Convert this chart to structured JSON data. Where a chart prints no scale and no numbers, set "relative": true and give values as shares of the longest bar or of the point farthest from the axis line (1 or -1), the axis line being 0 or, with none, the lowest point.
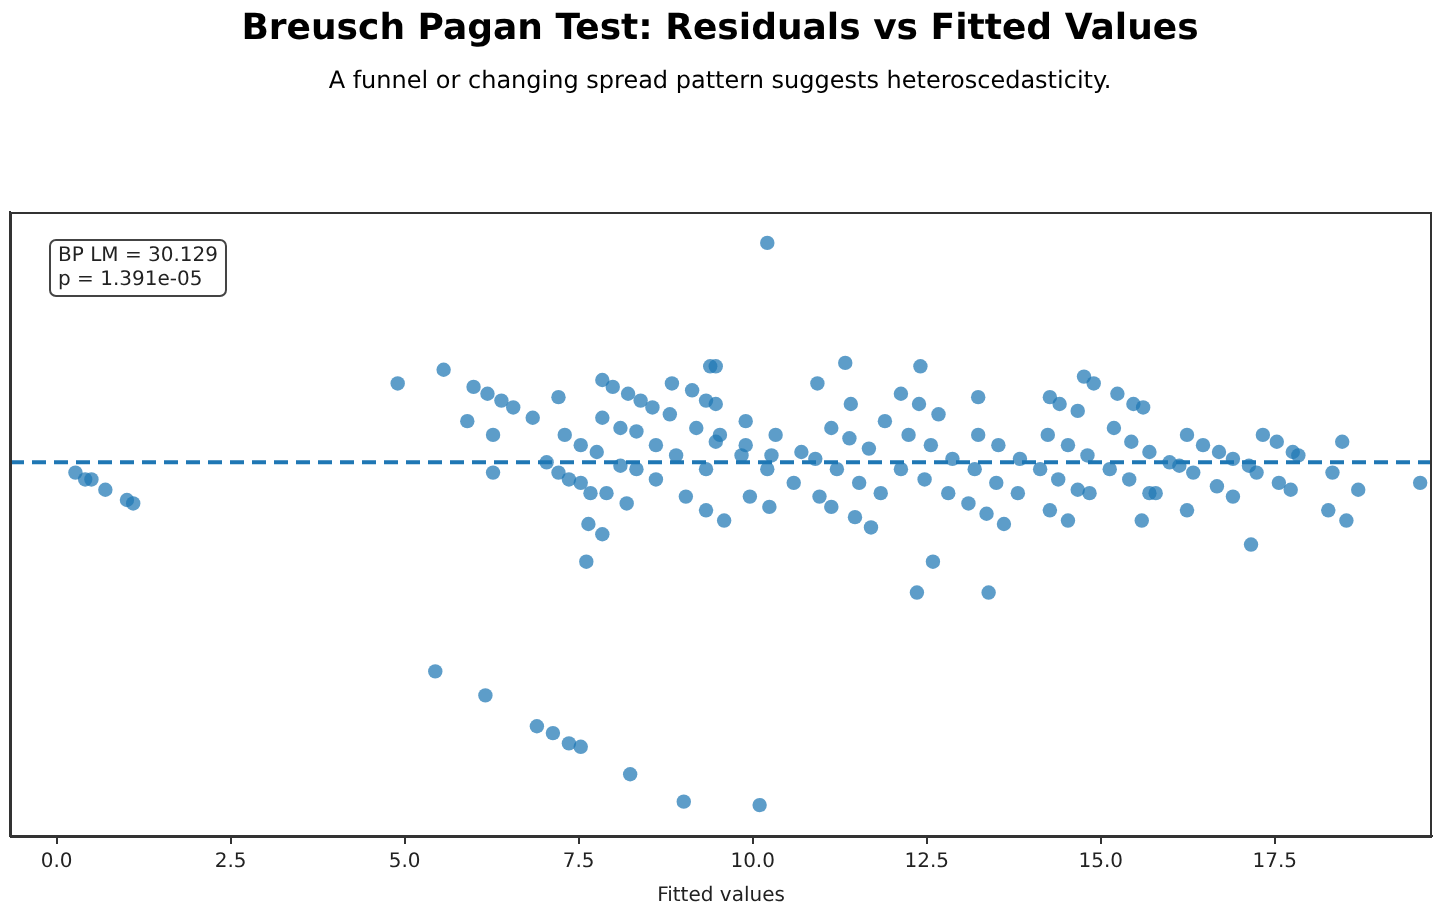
{
  "chart_data": {
    "type": "scatter",
    "title": "Breusch Pagan Test: Residuals vs Fitted Values",
    "subtitle": "A funnel or changing spread pattern suggests heteroscedasticity.",
    "xlabel": "Fitted values",
    "annotations": [
      "BP LM = 30.129\np = 1.391e-05"
    ],
    "relative": true,
    "legend": false,
    "grid": false,
    "marker": "circle",
    "xlim": [
      -0.67,
      19.76
    ],
    "xticks": [
      {
        "value": 0,
        "label": "0.0"
      },
      {
        "value": 2.5,
        "label": "2.5"
      },
      {
        "value": 5,
        "label": "5.0"
      },
      {
        "value": 7.5,
        "label": "7.5"
      },
      {
        "value": 10,
        "label": "10.0"
      },
      {
        "value": 12.5,
        "label": "12.5"
      },
      {
        "value": 15,
        "label": "15.0"
      },
      {
        "value": 17.5,
        "label": "17.5"
      }
    ],
    "ref_lines": [
      {
        "axis": "y",
        "value": 0,
        "color": "#1f77b4",
        "line_style": "dashed"
      }
    ],
    "series": [
      {
        "color": "#1f77b4",
        "x": [
          0.27,
          0.41,
          0.5,
          0.7,
          1.01,
          1.1,
          4.9,
          5.56,
          5.9,
          5.99,
          6.19,
          6.27,
          6.27,
          6.39,
          6.56,
          6.84,
          7.04,
          7.21,
          7.21,
          7.3,
          7.36,
          7.53,
          7.53,
          7.67,
          7.76,
          7.64,
          7.84,
          7.61,
          7.9,
          8.19,
          5.44,
          6.16,
          6.9,
          7.13,
          7.36,
          7.53,
          8.24,
          9.01,
          10.1,
          12.36,
          12.59,
          13.39,
          10.21,
          7.84,
          7.99,
          8.21,
          8.39,
          8.56,
          8.84,
          9.39,
          9.13,
          7.84,
          8.1,
          8.33,
          8.61,
          8.1,
          8.33,
          8.61,
          8.81,
          9.19,
          9.53,
          9.9,
          10.27,
          9.33,
          8.9,
          9.33,
          9.04,
          9.33,
          9.59,
          9.47,
          9.47,
          9.9,
          10.33,
          10.7,
          9.47,
          9.84,
          10.21,
          10.59,
          10.96,
          9.96,
          10.24,
          11.13,
          11.39,
          11.67,
          10.9,
          11.21,
          11.53,
          11.84,
          11.13,
          11.47,
          11.7,
          11.41,
          10.93,
          11.33,
          12.13,
          12.39,
          12.67,
          11.9,
          12.24,
          12.56,
          12.87,
          13.19,
          13.5,
          13.81,
          12.13,
          12.47,
          12.81,
          13.1,
          13.36,
          13.61,
          12.41,
          13.24,
          13.24,
          13.53,
          13.84,
          14.24,
          14.53,
          14.81,
          14.13,
          14.39,
          14.67,
          14.27,
          14.53,
          14.27,
          14.41,
          14.67,
          14.76,
          14.9,
          14.84,
          15.19,
          15.44,
          15.7,
          15.13,
          15.41,
          15.7,
          15.24,
          15.47,
          15.61,
          15.59,
          15.79,
          15.99,
          16.13,
          16.24,
          16.47,
          16.7,
          16.33,
          16.67,
          16.24,
          16.9,
          17.13,
          16.9,
          17.33,
          17.53,
          17.76,
          17.84,
          17.24,
          17.56,
          17.73,
          17.16,
          18.47,
          18.33,
          18.7,
          18.27,
          18.53,
          19.59
        ],
        "values": [
          -0.03,
          -0.05,
          -0.05,
          -0.08,
          -0.11,
          -0.12,
          0.23,
          0.27,
          0.12,
          0.22,
          0.2,
          0.08,
          -0.03,
          0.18,
          0.16,
          0.13,
          0,
          0.19,
          -0.03,
          0.08,
          -0.05,
          0.05,
          -0.06,
          -0.09,
          0.03,
          -0.18,
          -0.21,
          -0.29,
          -0.09,
          -0.12,
          -0.61,
          -0.68,
          -0.77,
          -0.79,
          -0.82,
          -0.83,
          -0.91,
          -0.99,
          -1,
          -0.38,
          -0.29,
          -0.38,
          0.64,
          0.24,
          0.22,
          0.2,
          0.18,
          0.16,
          0.23,
          0.28,
          0.21,
          0.13,
          0.1,
          0.09,
          0.05,
          -0.01,
          -0.02,
          -0.05,
          0.14,
          0.1,
          0.08,
          0.05,
          0.02,
          0.18,
          0.02,
          -0.02,
          -0.1,
          -0.14,
          -0.17,
          0.28,
          0.17,
          0.12,
          0.08,
          0.03,
          0.06,
          0.02,
          -0.02,
          -0.06,
          -0.1,
          -0.1,
          -0.13,
          0.1,
          0.07,
          0.04,
          0.01,
          -0.02,
          -0.06,
          -0.09,
          -0.13,
          -0.16,
          -0.19,
          0.17,
          0.23,
          0.29,
          0.2,
          0.17,
          0.14,
          0.12,
          0.08,
          0.05,
          0.01,
          -0.02,
          -0.06,
          -0.09,
          -0.02,
          -0.05,
          -0.09,
          -0.12,
          -0.15,
          -0.18,
          0.28,
          0.19,
          0.08,
          0.05,
          0.01,
          0.08,
          0.05,
          0.02,
          -0.02,
          -0.05,
          -0.08,
          -0.14,
          -0.17,
          0.19,
          0.17,
          0.15,
          0.25,
          0.23,
          -0.09,
          0.1,
          0.06,
          0.03,
          -0.02,
          -0.05,
          -0.09,
          0.2,
          0.17,
          0.16,
          -0.17,
          -0.09,
          0,
          -0.01,
          0.08,
          0.05,
          0.03,
          -0.03,
          -0.07,
          -0.14,
          0.01,
          -0.01,
          -0.1,
          0.08,
          0.06,
          0.03,
          0.02,
          -0.03,
          -0.06,
          -0.08,
          -0.24,
          0.06,
          -0.03,
          -0.08,
          -0.14,
          -0.17,
          -0.06
        ]
      }
    ]
  }
}
